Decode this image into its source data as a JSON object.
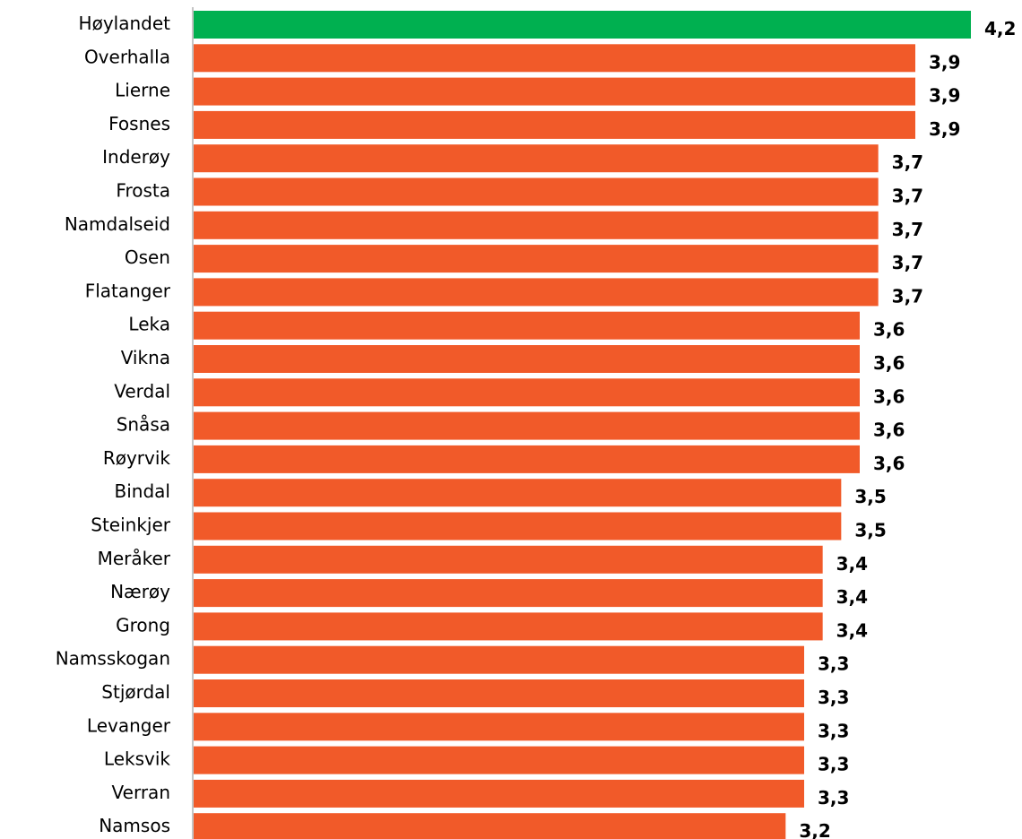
{
  "chart_data": {
    "type": "barh",
    "categories": [
      "Høylandet",
      "Overhalla",
      "Lierne",
      "Fosnes",
      "Inderøy",
      "Frosta",
      "Namdalseid",
      "Osen",
      "Flatanger",
      "Leka",
      "Vikna",
      "Verdal",
      "Snåsa",
      "Røyrvik",
      "Bindal",
      "Steinkjer",
      "Meråker",
      "Nærøy",
      "Grong",
      "Namsskogan",
      "Stjørdal",
      "Levanger",
      "Leksvik",
      "Verran",
      "Namsos"
    ],
    "values": [
      4.2,
      3.9,
      3.9,
      3.9,
      3.7,
      3.7,
      3.7,
      3.7,
      3.7,
      3.6,
      3.6,
      3.6,
      3.6,
      3.6,
      3.5,
      3.5,
      3.4,
      3.4,
      3.4,
      3.3,
      3.3,
      3.3,
      3.3,
      3.3,
      3.2
    ],
    "value_labels": [
      "4,2",
      "3,9",
      "3,9",
      "3,9",
      "3,7",
      "3,7",
      "3,7",
      "3,7",
      "3,7",
      "3,6",
      "3,6",
      "3,6",
      "3,6",
      "3,6",
      "3,5",
      "3,5",
      "3,4",
      "3,4",
      "3,4",
      "3,3",
      "3,3",
      "3,3",
      "3,3",
      "3,3",
      "3,2"
    ],
    "colors": [
      "#00b050",
      "#f15a29",
      "#f15a29",
      "#f15a29",
      "#f15a29",
      "#f15a29",
      "#f15a29",
      "#f15a29",
      "#f15a29",
      "#f15a29",
      "#f15a29",
      "#f15a29",
      "#f15a29",
      "#f15a29",
      "#f15a29",
      "#f15a29",
      "#f15a29",
      "#f15a29",
      "#f15a29",
      "#f15a29",
      "#f15a29",
      "#f15a29",
      "#f15a29",
      "#f15a29",
      "#f15a29"
    ]
  }
}
